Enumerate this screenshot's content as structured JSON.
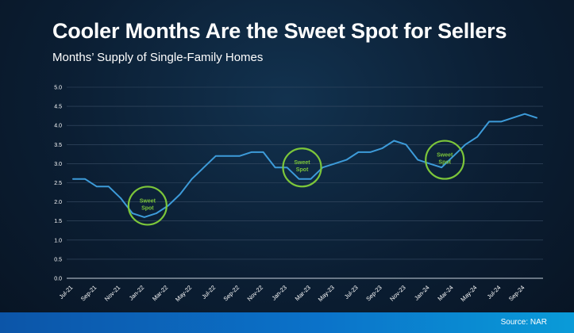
{
  "title": "Cooler Months Are the Sweet Spot for Sellers",
  "subtitle": "Months’ Supply of Single-Family Homes",
  "source": "Source: NAR",
  "colors": {
    "line": "#3d9bd9",
    "gridline": "#3a4e66",
    "highlight": "#7cc63a",
    "text": "#ffffff"
  },
  "chart_data": {
    "type": "line",
    "title": "Cooler Months Are the Sweet Spot for Sellers",
    "subtitle": "Months’ Supply of Single-Family Homes",
    "xlabel": "",
    "ylabel": "",
    "ylim": [
      0,
      5
    ],
    "yticks": [
      "0.0",
      "0.5",
      "1.0",
      "1.5",
      "2.0",
      "2.5",
      "3.0",
      "3.5",
      "4.0",
      "4.5",
      "5.0"
    ],
    "x": [
      "Jul-21",
      "Aug-21",
      "Sep-21",
      "Oct-21",
      "Nov-21",
      "Dec-21",
      "Jan-22",
      "Feb-22",
      "Mar-22",
      "Apr-22",
      "May-22",
      "Jun-22",
      "Jul-22",
      "Aug-22",
      "Sep-22",
      "Oct-22",
      "Nov-22",
      "Dec-22",
      "Jan-23",
      "Feb-23",
      "Mar-23",
      "Apr-23",
      "May-23",
      "Jun-23",
      "Jul-23",
      "Aug-23",
      "Sep-23",
      "Oct-23",
      "Nov-23",
      "Dec-23",
      "Jan-24",
      "Feb-24",
      "Mar-24",
      "Apr-24",
      "May-24",
      "Jun-24",
      "Jul-24",
      "Aug-24",
      "Sep-24",
      "Oct-24"
    ],
    "xtick_labels": [
      "Jul-21",
      "Sep-21",
      "Nov-21",
      "Jan-22",
      "Mar-22",
      "May-22",
      "Jul-22",
      "Sep-22",
      "Nov-22",
      "Jan-23",
      "Mar-23",
      "May-23",
      "Jul-23",
      "Sep-23",
      "Nov-23",
      "Jan-24",
      "Mar-24",
      "May-24",
      "Jul-24",
      "Sep-24"
    ],
    "values": [
      2.6,
      2.6,
      2.4,
      2.4,
      2.1,
      1.7,
      1.6,
      1.7,
      1.9,
      2.2,
      2.6,
      2.9,
      3.2,
      3.2,
      3.2,
      3.3,
      3.3,
      2.9,
      2.9,
      2.6,
      2.6,
      2.9,
      3.0,
      3.1,
      3.3,
      3.3,
      3.4,
      3.6,
      3.5,
      3.1,
      3.0,
      2.9,
      3.2,
      3.5,
      3.7,
      4.1,
      4.1,
      4.2,
      4.3,
      4.2
    ],
    "grid": true,
    "annotations": [
      {
        "text": "Sweet Spot",
        "x": "Jan-22",
        "y": 1.9
      },
      {
        "text": "Sweet Spot",
        "x": "Feb-23",
        "y": 2.9
      },
      {
        "text": "Sweet Spot",
        "x": "Feb-24",
        "y": 3.1
      }
    ]
  }
}
